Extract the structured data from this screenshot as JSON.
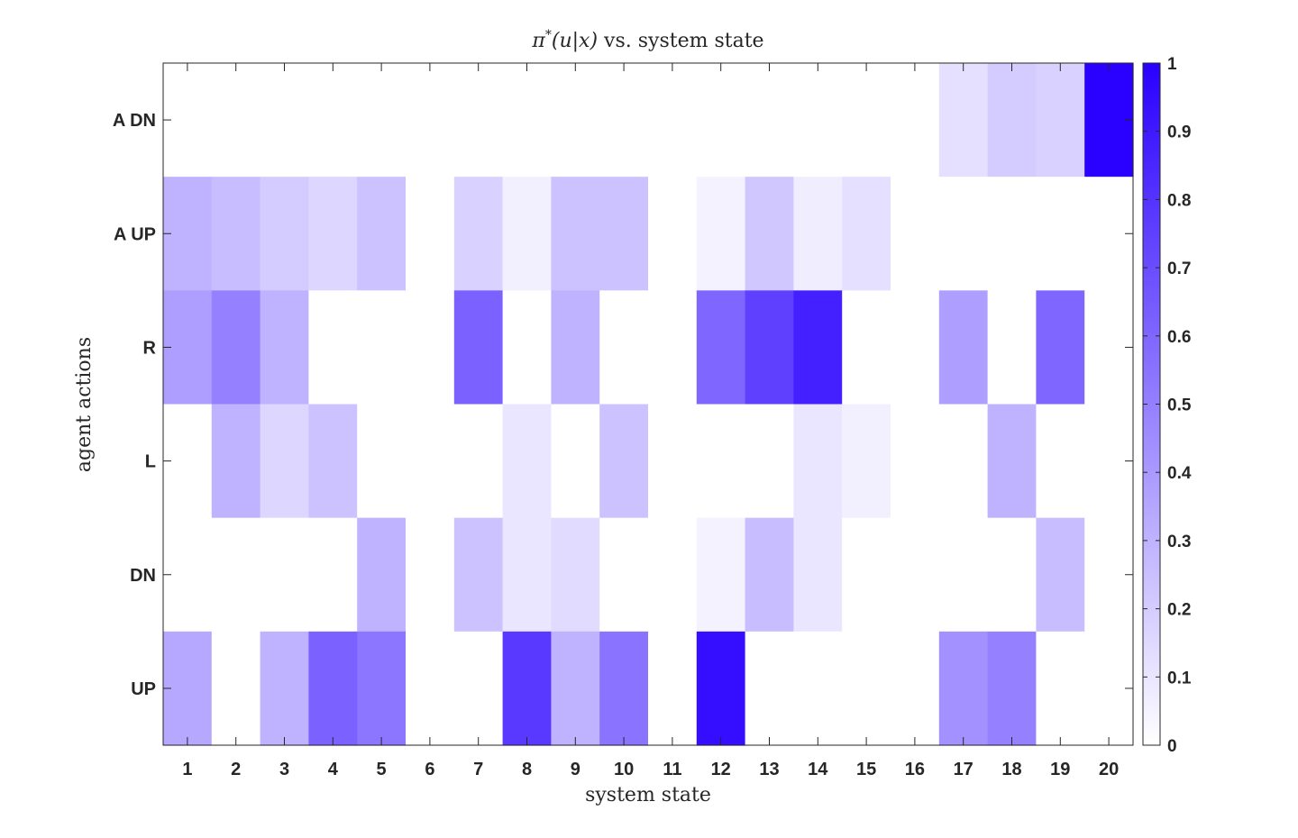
{
  "chart_data": {
    "type": "heatmap",
    "title": "π*(u|x) vs. system state",
    "title_parts": {
      "pi": "π",
      "star": "*",
      "args": "(u|x)",
      "rest": " vs. system state"
    },
    "xlabel": "system state",
    "ylabel": "agent actions",
    "x_categories": [
      "1",
      "2",
      "3",
      "4",
      "5",
      "6",
      "7",
      "8",
      "9",
      "10",
      "11",
      "12",
      "13",
      "14",
      "15",
      "16",
      "17",
      "18",
      "19",
      "20"
    ],
    "y_categories": [
      "A DN",
      "A UP",
      "R",
      "L",
      "DN",
      "UP"
    ],
    "values": [
      [
        0,
        0,
        0,
        0,
        0,
        0,
        0,
        0,
        0,
        0,
        0,
        0,
        0,
        0,
        0,
        0,
        0.12,
        0.2,
        0.18,
        1.0
      ],
      [
        0.3,
        0.26,
        0.2,
        0.16,
        0.24,
        0,
        0.18,
        0.06,
        0.24,
        0.24,
        0,
        0.05,
        0.22,
        0.07,
        0.12,
        0,
        0,
        0,
        0,
        0
      ],
      [
        0.38,
        0.5,
        0.3,
        0,
        0,
        0,
        0.62,
        0,
        0.3,
        0,
        0,
        0.6,
        0.75,
        0.88,
        0,
        0,
        0.38,
        0,
        0.6,
        0
      ],
      [
        0,
        0.3,
        0.16,
        0.24,
        0,
        0,
        0,
        0.1,
        0,
        0.24,
        0,
        0,
        0,
        0.1,
        0.06,
        0,
        0,
        0.3,
        0,
        0
      ],
      [
        0,
        0,
        0,
        0,
        0.3,
        0,
        0.24,
        0.1,
        0.14,
        0,
        0,
        0.05,
        0.26,
        0.1,
        0,
        0,
        0,
        0,
        0.26,
        0
      ],
      [
        0.34,
        0,
        0.3,
        0.62,
        0.54,
        0,
        0,
        0.78,
        0.3,
        0.55,
        0,
        0.95,
        0,
        0,
        0,
        0,
        0.43,
        0.5,
        0,
        0
      ]
    ],
    "colorbar": {
      "min": 0,
      "max": 1,
      "ticks": [
        "0",
        "0.1",
        "0.2",
        "0.3",
        "0.4",
        "0.5",
        "0.6",
        "0.7",
        "0.8",
        "0.9",
        "1"
      ],
      "low_color": "#ffffff",
      "high_color": "#2a00ff"
    },
    "grid": false
  }
}
